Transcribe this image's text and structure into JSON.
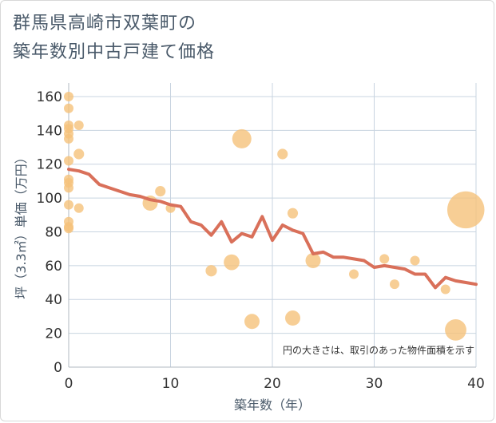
{
  "title": {
    "line1": "群馬県高崎市双葉町の",
    "line2": "築年数別中古戸建て価格"
  },
  "chart_data": {
    "type": "scatter",
    "title": "群馬県高崎市双葉町の築年数別中古戸建て価格",
    "xlabel": "築年数（年）",
    "ylabel": "坪（3.3㎡）単価（万円）",
    "xlim": [
      0,
      40
    ],
    "ylim": [
      0,
      168
    ],
    "xticks": [
      "0",
      "10",
      "20",
      "30",
      "40"
    ],
    "yticks": [
      "0",
      "20",
      "40",
      "60",
      "80",
      "100",
      "120",
      "140",
      "160"
    ],
    "xtick_values": [
      0,
      10,
      20,
      30,
      40
    ],
    "ytick_values": [
      0,
      20,
      40,
      60,
      80,
      100,
      120,
      140,
      160
    ],
    "grid": true,
    "note": "円の大きさは、取引のあった物件面積を示す",
    "colors": {
      "bubble": "#f5c27a",
      "line": "#d9705a",
      "grid": "#c8d4e0"
    },
    "points": [
      {
        "x": 0,
        "y": 160,
        "size": 1
      },
      {
        "x": 0,
        "y": 153,
        "size": 1
      },
      {
        "x": 0,
        "y": 143,
        "size": 1
      },
      {
        "x": 0,
        "y": 141,
        "size": 1
      },
      {
        "x": 0,
        "y": 138,
        "size": 1
      },
      {
        "x": 0,
        "y": 135,
        "size": 1
      },
      {
        "x": 0,
        "y": 122,
        "size": 1
      },
      {
        "x": 0,
        "y": 111,
        "size": 1
      },
      {
        "x": 0,
        "y": 109,
        "size": 1
      },
      {
        "x": 0,
        "y": 106,
        "size": 1
      },
      {
        "x": 0,
        "y": 96,
        "size": 1
      },
      {
        "x": 0,
        "y": 86,
        "size": 1
      },
      {
        "x": 0,
        "y": 83,
        "size": 1
      },
      {
        "x": 0,
        "y": 82,
        "size": 1
      },
      {
        "x": 1,
        "y": 143,
        "size": 1
      },
      {
        "x": 1,
        "y": 126,
        "size": 1.2
      },
      {
        "x": 1,
        "y": 94,
        "size": 1
      },
      {
        "x": 8,
        "y": 97,
        "size": 2.5
      },
      {
        "x": 9,
        "y": 104,
        "size": 1.2
      },
      {
        "x": 10,
        "y": 94,
        "size": 1
      },
      {
        "x": 14,
        "y": 57,
        "size": 1.4
      },
      {
        "x": 16,
        "y": 62,
        "size": 2.7
      },
      {
        "x": 17,
        "y": 135,
        "size": 4
      },
      {
        "x": 18,
        "y": 27,
        "size": 2.5
      },
      {
        "x": 21,
        "y": 126,
        "size": 1.2
      },
      {
        "x": 22,
        "y": 91,
        "size": 1.2
      },
      {
        "x": 22,
        "y": 29,
        "size": 2.5
      },
      {
        "x": 24,
        "y": 63,
        "size": 2.5
      },
      {
        "x": 28,
        "y": 55,
        "size": 1
      },
      {
        "x": 31,
        "y": 64,
        "size": 1
      },
      {
        "x": 32,
        "y": 49,
        "size": 1
      },
      {
        "x": 34,
        "y": 63,
        "size": 1
      },
      {
        "x": 37,
        "y": 46,
        "size": 1
      },
      {
        "x": 38,
        "y": 22,
        "size": 5
      },
      {
        "x": 39,
        "y": 93,
        "size": 15
      }
    ],
    "trend": {
      "x": [
        0,
        1,
        2,
        3,
        4,
        5,
        6,
        7,
        8,
        9,
        10,
        11,
        12,
        13,
        14,
        15,
        16,
        17,
        18,
        19,
        20,
        21,
        22,
        23,
        24,
        25,
        26,
        27,
        28,
        29,
        30,
        31,
        32,
        33,
        34,
        35,
        36,
        37,
        38,
        39,
        40
      ],
      "y": [
        117,
        116,
        114,
        108,
        106,
        104,
        102,
        101,
        99,
        98,
        96,
        95,
        86,
        84,
        78,
        86,
        74,
        79,
        77,
        89,
        75,
        84,
        81,
        79,
        67,
        68,
        65,
        65,
        64,
        63,
        59,
        60,
        59,
        58,
        55,
        55,
        47,
        53,
        51,
        50,
        49
      ]
    }
  }
}
